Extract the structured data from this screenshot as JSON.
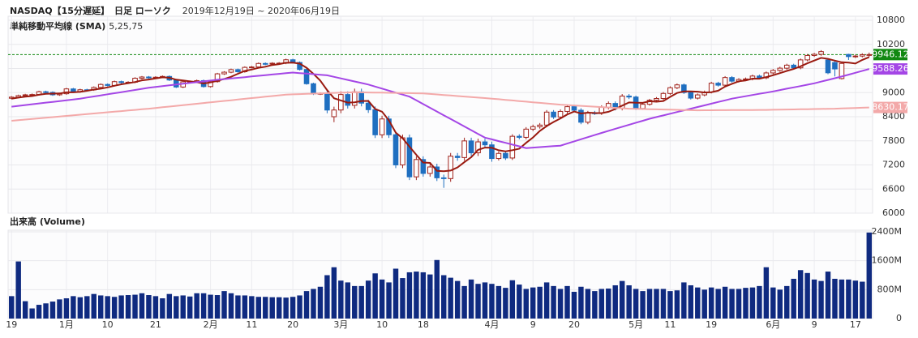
{
  "chart_data": [
    {
      "type": "candlestick",
      "title": "NASDAQ【15分遅延】",
      "chart_kind": "日足 ローソク",
      "period": "2019年12月19日 ~ 2020年06月19日",
      "subtitle": "単純移動平均線 (SMA)",
      "sma_periods": "5,25,75",
      "ylim": [
        6000,
        10800
      ],
      "yticks": [
        6000,
        6600,
        7200,
        7800,
        8400,
        9000,
        9600,
        10200,
        10800
      ],
      "grid": true,
      "up_color": "#a0231c",
      "down_color": "#1f6fc0",
      "last_color": "#118811",
      "last_line": true,
      "open": [
        8860,
        8887,
        8924,
        8945,
        8952,
        9022,
        9006,
        8945,
        8972,
        9092,
        9020,
        9071,
        9068,
        9129,
        9203,
        9178,
        9273,
        9251,
        9258,
        9357,
        9388,
        9370,
        9383,
        9402,
        9314,
        9139,
        9269,
        9275,
        9298,
        9150,
        9273,
        9467,
        9508,
        9572,
        9520,
        9628,
        9638,
        9725,
        9711,
        9731,
        9733,
        9817,
        9750,
        9576,
        9221,
        8966,
        8980,
        8400,
        8567,
        8952,
        8684,
        9019,
        8738,
        8575,
        7950,
        8344,
        7952,
        7201,
        7875,
        6904,
        7335,
        6989,
        7150,
        6880,
        6861,
        7418,
        7384,
        7798,
        7502,
        7774,
        7700,
        7360,
        7487,
        7373,
        7913,
        7887,
        8091,
        8153,
        8192,
        8515,
        8393,
        8532,
        8650,
        8561,
        8263,
        8495,
        8494,
        8634,
        8730,
        8608,
        8914,
        8890,
        8605,
        8710,
        8810,
        8854,
        8979,
        9121,
        9192,
        9002,
        8863,
        8943,
        9015,
        9234,
        9185,
        9375,
        9285,
        9325,
        9340,
        9412,
        9368,
        9490,
        9552,
        9608,
        9683,
        9616,
        9814,
        9924,
        9953,
        9810,
        9748,
        9349,
        9950,
        9896,
        9910,
        9943
      ],
      "high": [
        8912,
        8949,
        8970,
        8977,
        9047,
        9047,
        9031,
        8997,
        9117,
        9117,
        9096,
        9096,
        9154,
        9228,
        9228,
        9298,
        9298,
        9283,
        9382,
        9413,
        9413,
        9408,
        9427,
        9427,
        9339,
        9294,
        9300,
        9323,
        9323,
        9298,
        9492,
        9533,
        9597,
        9597,
        9653,
        9663,
        9750,
        9750,
        9756,
        9758,
        9842,
        9842,
        9775,
        9601,
        9246,
        9005,
        9060,
        8650,
        9032,
        9032,
        9099,
        9099,
        8818,
        8655,
        8424,
        8424,
        8032,
        7955,
        7955,
        7415,
        7415,
        7230,
        7230,
        6960,
        7498,
        7498,
        7878,
        7878,
        7854,
        7854,
        7780,
        7537,
        7537,
        7963,
        7963,
        8141,
        8203,
        8242,
        8565,
        8565,
        8582,
        8700,
        8700,
        8611,
        8545,
        8545,
        8684,
        8780,
        8780,
        8964,
        8964,
        8925,
        8745,
        8845,
        8889,
        9014,
        9156,
        9227,
        9227,
        9037,
        8978,
        9050,
        9269,
        9269,
        9410,
        9410,
        9360,
        9375,
        9447,
        9447,
        9525,
        9587,
        9643,
        9718,
        9718,
        9849,
        9959,
        9988,
        10056,
        9845,
        9782,
        9760,
        9966,
        9945,
        9978,
        9996
      ],
      "low": [
        8835,
        8862,
        8899,
        8920,
        8927,
        8981,
        8920,
        8920,
        8947,
        8995,
        8995,
        9043,
        9043,
        9104,
        9153,
        9153,
        9226,
        9226,
        9233,
        9332,
        9345,
        9345,
        9358,
        9289,
        9114,
        9114,
        9244,
        9250,
        9125,
        9125,
        9248,
        9442,
        9483,
        9495,
        9495,
        9603,
        9613,
        9686,
        9686,
        9706,
        9708,
        9725,
        9551,
        9196,
        8941,
        8941,
        8486,
        8264,
        8487,
        8604,
        8604,
        8658,
        8495,
        7870,
        7870,
        7872,
        7121,
        7121,
        6824,
        6824,
        6909,
        6909,
        6800,
        6631,
        6781,
        7304,
        7304,
        7422,
        7422,
        7620,
        7280,
        7310,
        7323,
        7323,
        7837,
        7837,
        8041,
        8103,
        8142,
        8343,
        8343,
        8482,
        8511,
        8213,
        8213,
        8444,
        8444,
        8584,
        8558,
        8558,
        8840,
        8570,
        8570,
        8675,
        8775,
        8819,
        8944,
        9086,
        8967,
        8828,
        8828,
        8908,
        8980,
        9150,
        9150,
        9250,
        9250,
        9290,
        9305,
        9333,
        9333,
        9455,
        9517,
        9573,
        9581,
        9581,
        9779,
        9889,
        9918,
        9458,
        9403,
        9327,
        9812,
        9861,
        9875,
        9891
      ],
      "close": [
        8887,
        8924,
        8945,
        8952,
        9022,
        9006,
        8945,
        8972,
        9092,
        9020,
        9071,
        9068,
        9129,
        9203,
        9178,
        9273,
        9251,
        9258,
        9357,
        9388,
        9370,
        9383,
        9402,
        9314,
        9139,
        9269,
        9275,
        9298,
        9150,
        9273,
        9467,
        9508,
        9572,
        9520,
        9628,
        9638,
        9725,
        9711,
        9731,
        9733,
        9817,
        9750,
        9576,
        9221,
        8966,
        8980,
        8566,
        8567,
        8952,
        8684,
        9019,
        8738,
        8575,
        7950,
        8344,
        7952,
        7201,
        7875,
        6904,
        7335,
        6989,
        7150,
        6880,
        6861,
        7418,
        7384,
        7798,
        7502,
        7774,
        7700,
        7360,
        7487,
        7373,
        7913,
        7887,
        8091,
        8153,
        8192,
        8515,
        8393,
        8532,
        8650,
        8561,
        8263,
        8495,
        8494,
        8634,
        8730,
        8608,
        8914,
        8890,
        8605,
        8710,
        8810,
        8854,
        8979,
        9121,
        9192,
        9002,
        8863,
        8943,
        9015,
        9234,
        9185,
        9375,
        9285,
        9325,
        9340,
        9412,
        9368,
        9490,
        9552,
        9608,
        9683,
        9616,
        9814,
        9924,
        9953,
        10020,
        9493,
        9589,
        9726,
        9896,
        9910,
        9943,
        9946.12
      ],
      "lines": [
        {
          "color": "#9a1a10",
          "width": 2,
          "show_last": false,
          "values": [
            8850,
            8875,
            8900,
            8915,
            8946,
            8970,
            8974,
            8979,
            9007,
            9007,
            9020,
            9045,
            9076,
            9098,
            9130,
            9170,
            9207,
            9233,
            9263,
            9305,
            9325,
            9351,
            9380,
            9371,
            9322,
            9301,
            9280,
            9259,
            9226,
            9253,
            9293,
            9339,
            9394,
            9468,
            9539,
            9573,
            9617,
            9644,
            9687,
            9708,
            9743,
            9748,
            9721,
            9619,
            9466,
            9299,
            9062,
            8860,
            8806,
            8750,
            8758,
            8792,
            8794,
            8593,
            8525,
            8312,
            8004,
            7864,
            7655,
            7453,
            7261,
            7251,
            7052,
            7043,
            7060,
            7139,
            7268,
            7393,
            7575,
            7632,
            7627,
            7565,
            7539,
            7567,
            7604,
            7750,
            7883,
            8047,
            8168,
            8269,
            8357,
            8456,
            8530,
            8480,
            8500,
            8493,
            8489,
            8523,
            8592,
            8676,
            8755,
            8749,
            8745,
            8786,
            8774,
            8792,
            8895,
            8991,
            9030,
            9031,
            9024,
            9003,
            9011,
            9048,
            9150,
            9219,
            9281,
            9302,
            9347,
            9346,
            9387,
            9432,
            9486,
            9540,
            9590,
            9655,
            9729,
            9798,
            9865,
            9841,
            9796,
            9756,
            9745,
            9723,
            9813,
            9884
          ]
        },
        {
          "color": "#a446e6",
          "width": 2,
          "show_last": true,
          "values": [
            8650,
            8670,
            8690,
            8710,
            8730,
            8750,
            8770,
            8790,
            8810,
            8830,
            8850,
            8877,
            8904,
            8931,
            8958,
            8985,
            9012,
            9039,
            9066,
            9093,
            9120,
            9140,
            9160,
            9180,
            9200,
            9220,
            9240,
            9260,
            9280,
            9300,
            9320,
            9336,
            9353,
            9369,
            9385,
            9402,
            9418,
            9435,
            9451,
            9467,
            9484,
            9500,
            9486,
            9472,
            9458,
            9444,
            9430,
            9392,
            9353,
            9315,
            9277,
            9238,
            9200,
            9150,
            9100,
            9050,
            9000,
            8950,
            8900,
            8807,
            8714,
            8621,
            8529,
            8436,
            8343,
            8250,
            8158,
            8065,
            7973,
            7880,
            7837,
            7793,
            7750,
            7707,
            7663,
            7620,
            7632,
            7644,
            7656,
            7668,
            7680,
            7733,
            7786,
            7839,
            7891,
            7944,
            7997,
            8050,
            8100,
            8150,
            8200,
            8250,
            8300,
            8350,
            8392,
            8433,
            8475,
            8517,
            8558,
            8600,
            8642,
            8683,
            8725,
            8767,
            8808,
            8850,
            8880,
            8910,
            8940,
            8970,
            9000,
            9030,
            9063,
            9097,
            9130,
            9163,
            9197,
            9230,
            9273,
            9315,
            9358,
            9400,
            9447,
            9494,
            9541,
            9588.26
          ]
        },
        {
          "color": "#f3a9a9",
          "width": 2,
          "show_last": true,
          "values": [
            8300,
            8315,
            8330,
            8345,
            8360,
            8375,
            8390,
            8405,
            8420,
            8435,
            8450,
            8465,
            8480,
            8495,
            8510,
            8525,
            8540,
            8555,
            8570,
            8585,
            8600,
            8618,
            8635,
            8653,
            8670,
            8688,
            8705,
            8723,
            8740,
            8758,
            8775,
            8793,
            8810,
            8828,
            8845,
            8863,
            8880,
            8898,
            8915,
            8933,
            8950,
            8956,
            8962,
            8968,
            8974,
            8980,
            8986,
            8992,
            8998,
            9004,
            9010,
            9007,
            9004,
            9001,
            8998,
            8995,
            8992,
            8989,
            8986,
            8983,
            8980,
            8967,
            8954,
            8941,
            8928,
            8915,
            8902,
            8889,
            8876,
            8863,
            8850,
            8835,
            8820,
            8805,
            8790,
            8775,
            8760,
            8745,
            8730,
            8715,
            8700,
            8690,
            8680,
            8670,
            8660,
            8650,
            8640,
            8630,
            8620,
            8610,
            8600,
            8596,
            8592,
            8588,
            8584,
            8580,
            8576,
            8572,
            8568,
            8564,
            8560,
            8561,
            8562,
            8563,
            8564,
            8565,
            8566,
            8567,
            8568,
            8569,
            8570,
            8573,
            8576,
            8579,
            8582,
            8585,
            8588,
            8591,
            8594,
            8597,
            8600,
            8606,
            8612,
            8618,
            8624,
            8630.17
          ]
        }
      ]
    },
    {
      "type": "bar",
      "title": "出来高 (Volume)",
      "color": "#0f2a80",
      "grid": true,
      "ylim": [
        0,
        2400
      ],
      "yticks": [
        0,
        {
          "value": 800,
          "label": "800M"
        },
        {
          "value": 1600,
          "label": "1600M"
        },
        {
          "value": 2400,
          "label": "2400M"
        }
      ],
      "categories": [
        "19",
        null,
        null,
        null,
        null,
        null,
        null,
        null,
        "1月",
        null,
        null,
        null,
        null,
        null,
        "10",
        null,
        null,
        null,
        null,
        null,
        null,
        "21",
        null,
        null,
        null,
        null,
        null,
        null,
        null,
        "2月",
        null,
        null,
        null,
        null,
        null,
        "11",
        null,
        null,
        null,
        null,
        null,
        "20",
        null,
        null,
        null,
        null,
        null,
        null,
        "3月",
        null,
        null,
        null,
        null,
        null,
        "10",
        null,
        null,
        null,
        null,
        null,
        "18",
        null,
        null,
        null,
        null,
        null,
        null,
        null,
        null,
        null,
        "4月",
        null,
        null,
        null,
        null,
        null,
        "9",
        null,
        null,
        null,
        null,
        null,
        "20",
        null,
        null,
        null,
        null,
        null,
        null,
        null,
        null,
        "5月",
        null,
        null,
        null,
        null,
        "11",
        null,
        null,
        null,
        null,
        null,
        "19",
        null,
        null,
        null,
        null,
        null,
        null,
        null,
        null,
        "6月",
        null,
        null,
        null,
        null,
        null,
        "9",
        null,
        null,
        null,
        null,
        null,
        "17",
        null,
        null
      ],
      "values": [
        620,
        1580,
        480,
        280,
        380,
        420,
        470,
        530,
        560,
        620,
        590,
        620,
        680,
        640,
        620,
        600,
        640,
        650,
        660,
        700,
        650,
        620,
        560,
        680,
        620,
        640,
        610,
        700,
        700,
        660,
        650,
        760,
        700,
        640,
        640,
        620,
        600,
        600,
        590,
        590,
        580,
        600,
        640,
        760,
        820,
        880,
        1200,
        1420,
        1050,
        1000,
        900,
        900,
        1050,
        1250,
        1080,
        1000,
        1380,
        1120,
        1280,
        1300,
        1280,
        1220,
        1620,
        1200,
        1130,
        1040,
        900,
        1080,
        960,
        1000,
        960,
        900,
        850,
        1060,
        940,
        820,
        860,
        880,
        1000,
        900,
        820,
        900,
        740,
        880,
        820,
        760,
        820,
        830,
        920,
        1040,
        920,
        820,
        760,
        820,
        820,
        820,
        760,
        780,
        1000,
        920,
        860,
        800,
        860,
        820,
        880,
        820,
        820,
        850,
        860,
        900,
        1420,
        860,
        800,
        900,
        1100,
        1340,
        1260,
        1080,
        1040,
        1300,
        1100,
        1080,
        1080,
        1050,
        1020,
        2380
      ]
    }
  ]
}
